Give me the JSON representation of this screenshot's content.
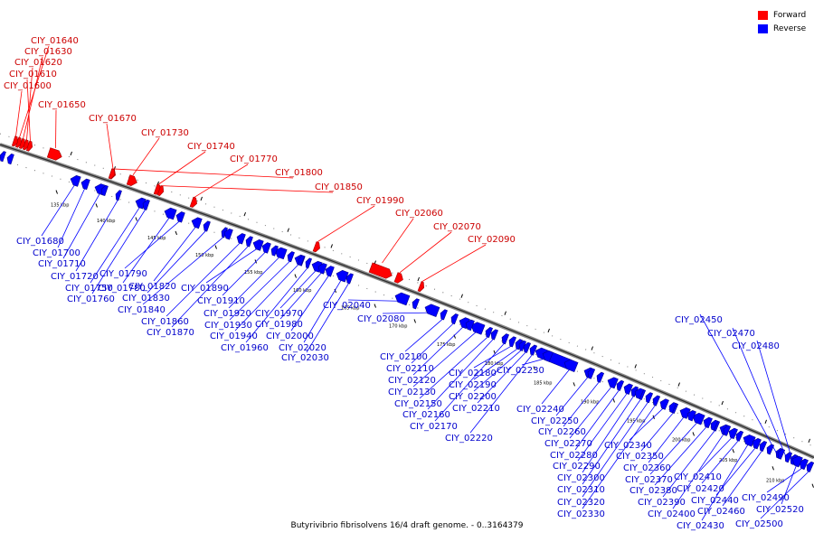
{
  "legend": {
    "forward_label": "Forward",
    "reverse_label": "Reverse",
    "forward_color": "#ff0000",
    "reverse_color": "#0000ff"
  },
  "caption": "Butyrivibrio fibrisolvens 16/4 draft genome. - 0..3164379",
  "forward_genes": [
    "CIY_01640",
    "CIY_01630",
    "CIY_01620",
    "CIY_01610",
    "CIY_01600",
    "CIY_01650",
    "CIY_01670",
    "CIY_01730",
    "CIY_01740",
    "CIY_01770",
    "CIY_01800",
    "CIY_01850",
    "CIY_01990",
    "CIY_02060",
    "CIY_02070",
    "CIY_02090"
  ],
  "reverse_genes": [
    "CIY_01680",
    "CIY_01700",
    "CIY_01710",
    "CIY_01720",
    "CIY_01750",
    "CIY_01760",
    "CIY_01780",
    "CIY_01790",
    "CIY_01820",
    "CIY_01830",
    "CIY_01840",
    "CIY_01860",
    "CIY_01870",
    "CIY_01890",
    "CIY_01910",
    "CIY_01920",
    "CIY_01930",
    "CIY_01940",
    "CIY_01960",
    "CIY_01970",
    "CIY_01980",
    "CIY_02000",
    "CIY_02020",
    "CIY_02030",
    "CIY_02040",
    "CIY_02080",
    "CIY_02100",
    "CIY_02110",
    "CIY_02120",
    "CIY_02130",
    "CIY_02150",
    "CIY_02160",
    "CIY_02170",
    "CIY_02180",
    "CIY_02190",
    "CIY_02200",
    "CIY_02210",
    "CIY_02220",
    "CIY_02230",
    "CIY_02240",
    "CIY_02250",
    "CIY_02260",
    "CIY_02270",
    "CIY_02280",
    "CIY_02290",
    "CIY_02300",
    "CIY_02310",
    "CIY_02320",
    "CIY_02330",
    "CIY_02340",
    "CIY_02350",
    "CIY_02360",
    "CIY_02370",
    "CIY_02380",
    "CIY_02390",
    "CIY_02400",
    "CIY_02410",
    "CIY_02420",
    "CIY_02430",
    "CIY_02440",
    "CIY_02450",
    "CIY_02460",
    "CIY_02470",
    "CIY_02480",
    "CIY_02490",
    "CIY_02500",
    "CIY_02520"
  ],
  "scale_ticks": [
    "135 kbp",
    "140 kbp",
    "145 kbp",
    "150 kbp",
    "155 kbp",
    "160 kbp",
    "165 kbp",
    "170 kbp",
    "175 kbp",
    "180 kbp",
    "185 kbp",
    "190 kbp",
    "195 kbp",
    "200 kbp",
    "205 kbp",
    "210 kbp"
  ]
}
